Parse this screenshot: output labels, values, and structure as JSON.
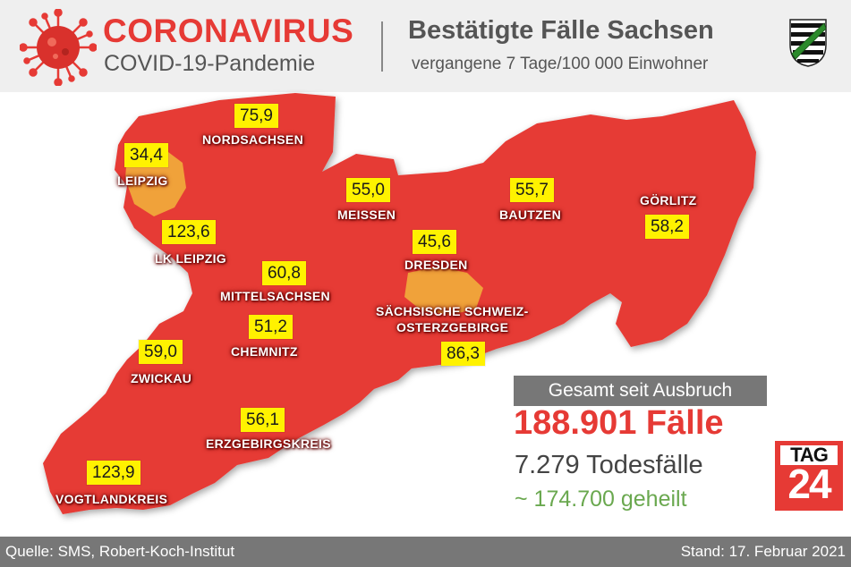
{
  "header": {
    "title": "CORONAVIRUS",
    "subtitle": "COVID-19-Pandemie",
    "heading": "Bestätigte Fälle Sachsen",
    "subheading": "vergangene 7 Tage/100 000 Einwohner"
  },
  "regions": [
    {
      "name": "NORDSACHSEN",
      "value": "75,9"
    },
    {
      "name": "LEIPZIG",
      "value": "34,4"
    },
    {
      "name": "LK LEIPZIG",
      "value": "123,6"
    },
    {
      "name": "MEISSEN",
      "value": "55,0"
    },
    {
      "name": "BAUTZEN",
      "value": "55,7"
    },
    {
      "name": "GÖRLITZ",
      "value": "58,2"
    },
    {
      "name": "DRESDEN",
      "value": "45,6"
    },
    {
      "name": "MITTELSACHSEN",
      "value": "60,8"
    },
    {
      "name": "CHEMNITZ",
      "value": "51,2"
    },
    {
      "name": "SÄCHSISCHE SCHWEIZ-",
      "name2": "OSTERZGEBIRGE",
      "value": "86,3"
    },
    {
      "name": "ZWICKAU",
      "value": "59,0"
    },
    {
      "name": "ERZGEBIRGSKREIS",
      "value": "56,1"
    },
    {
      "name": "VOGTLANDKREIS",
      "value": "123,9"
    }
  ],
  "stats": {
    "label": "Gesamt seit Ausbruch",
    "cases": "188.901 Fälle",
    "deaths": "7.279 Todesfälle",
    "recovered": "~ 174.700 geheilt"
  },
  "logo": {
    "top": "TAG",
    "number": "24"
  },
  "footer": {
    "source": "Quelle: SMS, Robert-Koch-Institut",
    "date": "Stand: 17. Februar 2021"
  },
  "colors": {
    "map_red": "#e63a35",
    "city_orange": "#f0a23a",
    "value_yellow": "#fff200",
    "recovered_green": "#6aa84f"
  }
}
